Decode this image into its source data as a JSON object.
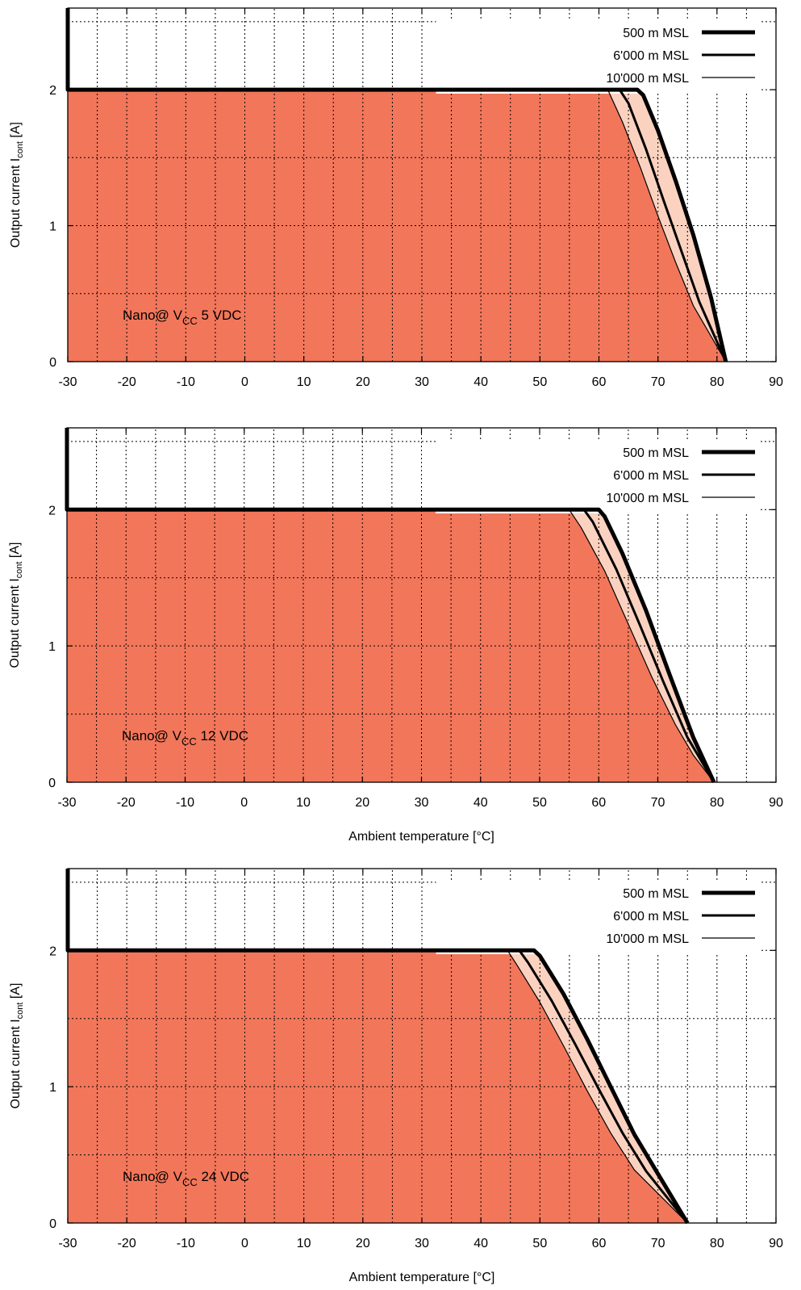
{
  "colors": {
    "fill_main": "#f2765a",
    "fill_band": "#fbd2c0",
    "line": "#000000",
    "grid": "#000000"
  },
  "chart_data": [
    {
      "type": "line",
      "annotation": {
        "prefix": "Nano@ V",
        "subscript": "CC",
        "suffix": " 5 VDC"
      },
      "xlabel": "",
      "ylabel": {
        "prefix": "Output current I",
        "subscript": "cont",
        "suffix": " [A]"
      },
      "xlim": [
        -30,
        90
      ],
      "ylim": [
        0,
        2.6
      ],
      "x_ticks": [
        -30,
        -20,
        -10,
        0,
        10,
        20,
        30,
        40,
        50,
        60,
        70,
        80,
        90
      ],
      "y_ticks": [
        0,
        1,
        2
      ],
      "grid": true,
      "legend_position": "top-right",
      "series": [
        {
          "name": "500 m MSL",
          "points": [
            [
              -30,
              2.6
            ],
            [
              -30,
              2
            ],
            [
              66.5,
              2
            ],
            [
              67.5,
              1.96
            ],
            [
              70,
              1.7
            ],
            [
              73,
              1.33
            ],
            [
              76,
              0.93
            ],
            [
              79,
              0.47
            ],
            [
              81.5,
              0
            ]
          ]
        },
        {
          "name": "6'000 m MSL",
          "points": [
            [
              -30,
              2
            ],
            [
              63.5,
              2
            ],
            [
              65,
              1.9
            ],
            [
              68,
              1.56
            ],
            [
              71,
              1.18
            ],
            [
              74,
              0.81
            ],
            [
              77,
              0.44
            ],
            [
              81.5,
              0
            ]
          ]
        },
        {
          "name": "10'000 m MSL",
          "points": [
            [
              -30,
              2
            ],
            [
              61.5,
              2
            ],
            [
              64,
              1.76
            ],
            [
              67,
              1.43
            ],
            [
              70,
              1.07
            ],
            [
              73,
              0.73
            ],
            [
              76,
              0.41
            ],
            [
              81.5,
              0
            ]
          ]
        }
      ]
    },
    {
      "type": "line",
      "annotation": {
        "prefix": "Nano@ V",
        "subscript": "CC",
        "suffix": " 12 VDC"
      },
      "xlabel": "Ambient temperature [°C]",
      "ylabel": {
        "prefix": "Output current I",
        "subscript": "cont",
        "suffix": " [A]"
      },
      "xlim": [
        -30,
        90
      ],
      "ylim": [
        0,
        2.6
      ],
      "x_ticks": [
        -30,
        -20,
        -10,
        0,
        10,
        20,
        30,
        40,
        50,
        60,
        70,
        80,
        90
      ],
      "y_ticks": [
        0,
        1,
        2
      ],
      "grid": true,
      "legend_position": "top-right",
      "series": [
        {
          "name": "500 m MSL",
          "points": [
            [
              -30,
              2.6
            ],
            [
              -30,
              2
            ],
            [
              60,
              2
            ],
            [
              61,
              1.95
            ],
            [
              64,
              1.68
            ],
            [
              68,
              1.26
            ],
            [
              72,
              0.79
            ],
            [
              76,
              0.33
            ],
            [
              79.5,
              0
            ]
          ]
        },
        {
          "name": "6'000 m MSL",
          "points": [
            [
              -30,
              2
            ],
            [
              57.5,
              2
            ],
            [
              59,
              1.91
            ],
            [
              63,
              1.56
            ],
            [
              67,
              1.15
            ],
            [
              71,
              0.73
            ],
            [
              75,
              0.33
            ],
            [
              79.5,
              0
            ]
          ]
        },
        {
          "name": "10'000 m MSL",
          "points": [
            [
              -30,
              2
            ],
            [
              55,
              2
            ],
            [
              57,
              1.87
            ],
            [
              61,
              1.55
            ],
            [
              65,
              1.16
            ],
            [
              69,
              0.77
            ],
            [
              73,
              0.42
            ],
            [
              76,
              0.2
            ],
            [
              79.5,
              0
            ]
          ]
        }
      ]
    },
    {
      "type": "line",
      "annotation": {
        "prefix": "Nano@ V",
        "subscript": "CC",
        "suffix": " 24 VDC"
      },
      "xlabel": "Ambient temperature [°C]",
      "ylabel": {
        "prefix": "Output current I",
        "subscript": "cont",
        "suffix": " [A]"
      },
      "xlim": [
        -30,
        90
      ],
      "ylim": [
        0,
        2.6
      ],
      "x_ticks": [
        -30,
        -20,
        -10,
        0,
        10,
        20,
        30,
        40,
        50,
        60,
        70,
        80,
        90
      ],
      "y_ticks": [
        0,
        1,
        2
      ],
      "grid": true,
      "legend_position": "top-right",
      "series": [
        {
          "name": "500 m MSL",
          "points": [
            [
              -30,
              2.6
            ],
            [
              -30,
              2
            ],
            [
              49,
              2
            ],
            [
              50,
              1.96
            ],
            [
              54,
              1.68
            ],
            [
              58,
              1.35
            ],
            [
              62,
              1.0
            ],
            [
              66,
              0.65
            ],
            [
              70,
              0.36
            ],
            [
              75,
              0
            ]
          ]
        },
        {
          "name": "6'000 m MSL",
          "points": [
            [
              -30,
              2
            ],
            [
              46.5,
              2
            ],
            [
              48,
              1.91
            ],
            [
              52,
              1.63
            ],
            [
              56,
              1.31
            ],
            [
              60,
              0.98
            ],
            [
              64,
              0.66
            ],
            [
              68,
              0.38
            ],
            [
              75,
              0
            ]
          ]
        },
        {
          "name": "10'000 m MSL",
          "points": [
            [
              -30,
              2
            ],
            [
              44.5,
              2
            ],
            [
              46,
              1.9
            ],
            [
              50,
              1.62
            ],
            [
              54,
              1.3
            ],
            [
              58,
              0.97
            ],
            [
              62,
              0.66
            ],
            [
              66,
              0.39
            ],
            [
              75,
              0
            ]
          ]
        }
      ]
    }
  ]
}
